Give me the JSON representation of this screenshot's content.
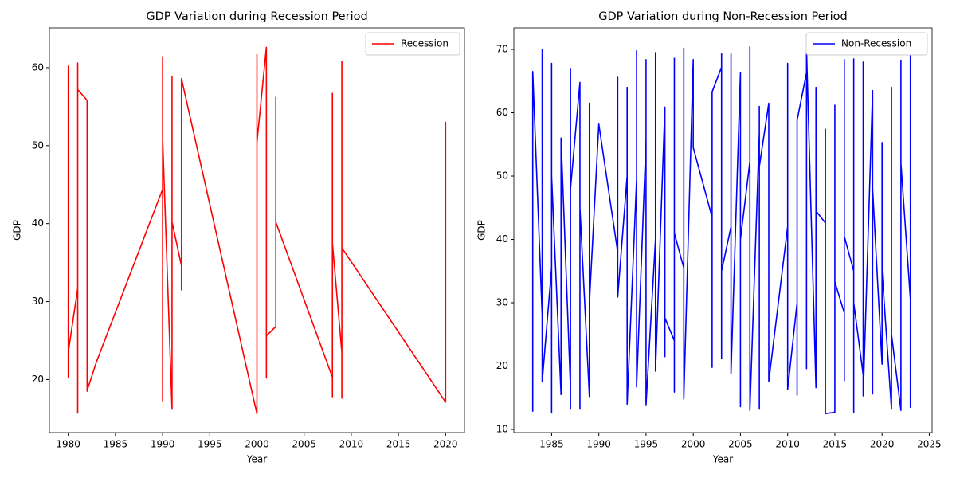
{
  "chart_data": [
    {
      "type": "line",
      "title": "GDP Variation during Recession Period",
      "xlabel": "Year",
      "ylabel": "GDP",
      "legend": "upper right",
      "xlim": [
        1978,
        2022
      ],
      "ylim": [
        13.2,
        65.1
      ],
      "xticks": [
        1980,
        1985,
        1990,
        1995,
        2000,
        2005,
        2010,
        2015,
        2020
      ],
      "yticks": [
        20,
        30,
        40,
        50,
        60
      ],
      "series": [
        {
          "name": "Recession",
          "color": "#ff0000",
          "x": [
            1980,
            1980,
            1980,
            1980,
            1980,
            1981,
            1981,
            1981,
            1981,
            1981,
            1982,
            1982,
            1982,
            1982,
            1983,
            1990,
            1990,
            1990,
            1990,
            1990,
            1990,
            1991,
            1991,
            1991,
            1991,
            1992,
            1992,
            1992,
            2000,
            2000,
            2000,
            2000,
            2000,
            2000,
            2001,
            2001,
            2001,
            2002,
            2002,
            2002,
            2008,
            2008,
            2008,
            2008,
            2008,
            2009,
            2009,
            2009,
            2009,
            2020,
            2020,
            2020
          ],
          "values": [
            55.5,
            24,
            60.2,
            20.3,
            23.5,
            31.7,
            15.7,
            60.6,
            15.8,
            57.2,
            55.8,
            18.5,
            54,
            18.6,
            22.3,
            44.4,
            17.3,
            61.4,
            21,
            59,
            51,
            16.2,
            58.9,
            27,
            40.2,
            34.6,
            31.5,
            58.6,
            15.6,
            61.7,
            27.3,
            35,
            42,
            50.4,
            62.6,
            20.2,
            25.6,
            26.8,
            56.2,
            40.2,
            20.3,
            56.7,
            17.8,
            49,
            37.5,
            23.5,
            60.8,
            17.6,
            36.9,
            17.1,
            53,
            24.5
          ]
        }
      ]
    },
    {
      "type": "line",
      "title": "GDP Variation during Non-Recession Period",
      "xlabel": "Year",
      "ylabel": "GDP",
      "legend": "upper right",
      "xlim": [
        1981,
        2025.3
      ],
      "ylim": [
        9.5,
        73.4
      ],
      "xticks": [
        1985,
        1990,
        1995,
        2000,
        2005,
        2010,
        2015,
        2020,
        2025
      ],
      "yticks": [
        10,
        20,
        30,
        40,
        50,
        60,
        70
      ],
      "series": [
        {
          "name": "Non-Recession",
          "color": "#0000ff",
          "x": [
            1983,
            1983,
            1984,
            1984,
            1984,
            1985,
            1985,
            1985,
            1985,
            1986,
            1986,
            1987,
            1987,
            1987,
            1987,
            1988,
            1988,
            1988,
            1989,
            1989,
            1989,
            1990,
            1992,
            1992,
            1992,
            1993,
            1993,
            1993,
            1994,
            1994,
            1994,
            1995,
            1995,
            1995,
            1996,
            1996,
            1996,
            1997,
            1997,
            1997,
            1998,
            1998,
            1998,
            1998,
            1999,
            1999,
            1999,
            2000,
            2000,
            2002,
            2002,
            2002,
            2003,
            2003,
            2003,
            2003,
            2004,
            2004,
            2004,
            2005,
            2005,
            2005,
            2006,
            2006,
            2006,
            2007,
            2007,
            2007,
            2007,
            2008,
            2008,
            2010,
            2010,
            2010,
            2011,
            2011,
            2011,
            2012,
            2012,
            2012,
            2013,
            2013,
            2013,
            2014,
            2014,
            2014,
            2015,
            2015,
            2015,
            2016,
            2016,
            2016,
            2016,
            2017,
            2017,
            2017,
            2017,
            2018,
            2018,
            2018,
            2019,
            2019,
            2019,
            2020,
            2020,
            2020,
            2021,
            2021,
            2021,
            2022,
            2022,
            2022,
            2023,
            2023,
            2023,
            2023
          ],
          "values": [
            12.8,
            66.5,
            28,
            70,
            17.5,
            35.5,
            67.8,
            12.6,
            50,
            15.5,
            56,
            16.5,
            67,
            13.2,
            48,
            64.8,
            13.2,
            45,
            15.2,
            61.5,
            30,
            58.2,
            38,
            65.6,
            30.9,
            50,
            64,
            14,
            49.5,
            69.8,
            16.7,
            55.6,
            68.4,
            13.9,
            40,
            69.5,
            19.2,
            60.9,
            21.5,
            27.6,
            24,
            68.6,
            15.9,
            41,
            35.5,
            70.2,
            14.8,
            68.4,
            54.5,
            43.5,
            19.8,
            63.3,
            67.2,
            21.2,
            69.3,
            35,
            42,
            69.3,
            18.8,
            66.3,
            13.6,
            40,
            52.3,
            70.4,
            13,
            56.8,
            61,
            13.2,
            51.5,
            61.5,
            17.6,
            42,
            67.8,
            16.3,
            30,
            15.4,
            58.8,
            66.3,
            19.6,
            70,
            16.6,
            64,
            44.5,
            42.6,
            57.4,
            12.5,
            12.7,
            61.2,
            33.3,
            28.4,
            68.4,
            17.7,
            40.5,
            35,
            68.5,
            12.7,
            30,
            18.6,
            68,
            15.3,
            63.5,
            15.6,
            48,
            20.3,
            55.3,
            35,
            13.2,
            64,
            25,
            13,
            68.3,
            52,
            30.6,
            70,
            13.5,
            68
          ]
        }
      ]
    }
  ]
}
